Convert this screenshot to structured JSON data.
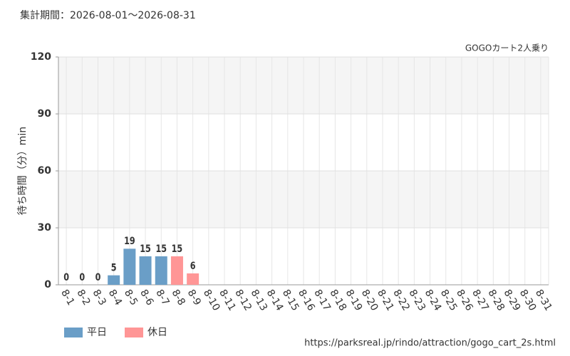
{
  "chart_data": {
    "type": "bar",
    "title": "集計期間：2026-08-01～2026-08-31",
    "subtitle": "GOGOカート2人乗り",
    "y_label": "待ち時間（分）min",
    "source": "https://parksreal.jp/rindo/attraction/gogo_cart_2s.html",
    "categories": [
      "8-1",
      "8-2",
      "8-3",
      "8-4",
      "8-5",
      "8-6",
      "8-7",
      "8-8",
      "8-9",
      "8-10",
      "8-11",
      "8-12",
      "8-13",
      "8-14",
      "8-15",
      "8-16",
      "8-17",
      "8-18",
      "8-19",
      "8-20",
      "8-21",
      "8-22",
      "8-23",
      "8-24",
      "8-25",
      "8-26",
      "8-27",
      "8-28",
      "8-29",
      "8-30",
      "8-31"
    ],
    "tick_label_colors": [
      "#f08080",
      "#f08080",
      "#333333",
      "#333333",
      "#333333",
      "#333333",
      "#333333",
      "#f08080",
      "#f08080",
      "#333333",
      "#f08080",
      "#333333",
      "#333333",
      "#333333",
      "#f08080",
      "#f08080",
      "#333333",
      "#333333",
      "#333333",
      "#333333",
      "#333333",
      "#f08080",
      "#f08080",
      "#333333",
      "#333333",
      "#333333",
      "#333333",
      "#333333",
      "#f08080",
      "#f08080",
      "#333333"
    ],
    "series": [
      {
        "name": "平日",
        "color": "#6a9ec7",
        "values": [
          null,
          null,
          0,
          5,
          19,
          15,
          15,
          null,
          null,
          null,
          null,
          null,
          null,
          null,
          null,
          null,
          null,
          null,
          null,
          null,
          null,
          null,
          null,
          null,
          null,
          null,
          null,
          null,
          null,
          null,
          null
        ]
      },
      {
        "name": "休日",
        "color": "#ff9696",
        "values": [
          0,
          0,
          null,
          null,
          null,
          null,
          null,
          15,
          6,
          null,
          null,
          null,
          null,
          null,
          null,
          null,
          null,
          null,
          null,
          null,
          null,
          null,
          null,
          null,
          null,
          null,
          null,
          null,
          null,
          null,
          null
        ]
      }
    ],
    "ylim": [
      0,
      120
    ],
    "yticks": [
      0,
      30,
      60,
      90,
      120
    ],
    "grid": true
  }
}
